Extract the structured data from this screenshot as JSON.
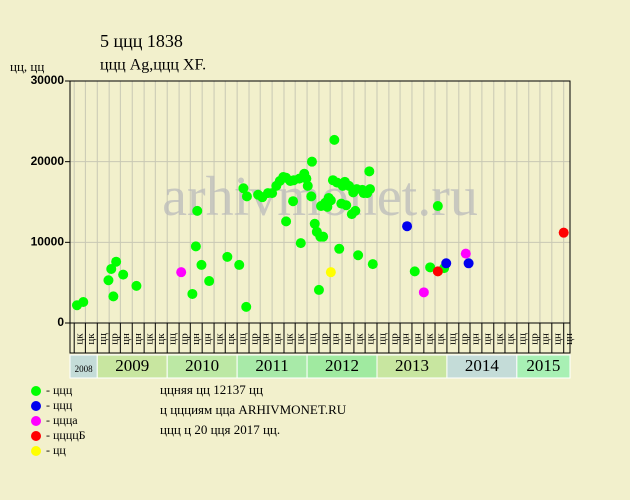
{
  "chart_data": {
    "type": "scatter",
    "title": "5 ццц 1838",
    "subtitle": "ццц Ag,ццц XF.",
    "ylabel": "цц, цц",
    "watermark": "arhivmonet.ru",
    "xlim": [
      2008.61,
      2015.76
    ],
    "ylim": [
      0,
      30000
    ],
    "yticks": [
      0,
      10000,
      20000,
      30000
    ],
    "grid": true,
    "xticks": [
      {
        "value": 2008.67,
        "label": "цк"
      },
      {
        "value": 2008.83,
        "label": "цк"
      },
      {
        "value": 2009,
        "label": "цц"
      },
      {
        "value": 2009.17,
        "label": "цр"
      },
      {
        "value": 2009.33,
        "label": "цн"
      },
      {
        "value": 2009.5,
        "label": "цн"
      },
      {
        "value": 2009.67,
        "label": "цк"
      },
      {
        "value": 2009.83,
        "label": "цк"
      },
      {
        "value": 2010,
        "label": "цц"
      },
      {
        "value": 2010.17,
        "label": "цр"
      },
      {
        "value": 2010.33,
        "label": "цн"
      },
      {
        "value": 2010.5,
        "label": "цн"
      },
      {
        "value": 2010.67,
        "label": "цк"
      },
      {
        "value": 2010.83,
        "label": "цк"
      },
      {
        "value": 2011,
        "label": "цц"
      },
      {
        "value": 2011.17,
        "label": "цр"
      },
      {
        "value": 2011.33,
        "label": "цн"
      },
      {
        "value": 2011.5,
        "label": "цн"
      },
      {
        "value": 2011.67,
        "label": "цк"
      },
      {
        "value": 2011.83,
        "label": "цк"
      },
      {
        "value": 2012,
        "label": "цц"
      },
      {
        "value": 2012.17,
        "label": "цр"
      },
      {
        "value": 2012.33,
        "label": "цн"
      },
      {
        "value": 2012.5,
        "label": "цн"
      },
      {
        "value": 2012.67,
        "label": "цк"
      },
      {
        "value": 2012.83,
        "label": "цк"
      },
      {
        "value": 2013,
        "label": "цц"
      },
      {
        "value": 2013.17,
        "label": "цр"
      },
      {
        "value": 2013.33,
        "label": "цн"
      },
      {
        "value": 2013.5,
        "label": "цн"
      },
      {
        "value": 2013.67,
        "label": "цк"
      },
      {
        "value": 2013.83,
        "label": "цк"
      },
      {
        "value": 2014,
        "label": "цц"
      },
      {
        "value": 2014.17,
        "label": "цр"
      },
      {
        "value": 2014.33,
        "label": "цн"
      },
      {
        "value": 2014.5,
        "label": "цн"
      },
      {
        "value": 2014.67,
        "label": "цк"
      },
      {
        "value": 2014.83,
        "label": "цк"
      },
      {
        "value": 2015,
        "label": "цц"
      },
      {
        "value": 2015.17,
        "label": "цр"
      },
      {
        "value": 2015.33,
        "label": "цн"
      },
      {
        "value": 2015.5,
        "label": "цн"
      },
      {
        "value": 2015.67,
        "label": "цн"
      }
    ],
    "year_bands": [
      {
        "label": "2008",
        "from": 2008.61,
        "to": 2009,
        "color": "#c4dcd8"
      },
      {
        "label": "2009",
        "from": 2009,
        "to": 2010,
        "color": "#c8e6a0"
      },
      {
        "label": "2010",
        "from": 2010,
        "to": 2011,
        "color": "#bce8a4"
      },
      {
        "label": "2011",
        "from": 2011,
        "to": 2012,
        "color": "#a8eaa8"
      },
      {
        "label": "2012",
        "from": 2012,
        "to": 2013,
        "color": "#a0eaa0"
      },
      {
        "label": "2013",
        "from": 2013,
        "to": 2014,
        "color": "#c8e6a0"
      },
      {
        "label": "2014",
        "from": 2014,
        "to": 2015,
        "color": "#c4dcd8"
      },
      {
        "label": "2015",
        "from": 2015,
        "to": 2015.76,
        "color": "#a8f0b4"
      }
    ],
    "series": [
      {
        "name": "- ццц",
        "color": "#00ff00",
        "x": [
          2008.71,
          2008.8,
          2009.16,
          2009.2,
          2009.23,
          2009.27,
          2009.37,
          2009.56,
          2010.36,
          2010.41,
          2010.43,
          2010.49,
          2010.6,
          2010.86,
          2011.03,
          2011.09,
          2011.13,
          2011.14,
          2011.3,
          2011.36,
          2011.44,
          2011.5,
          2011.56,
          2011.61,
          2011.66,
          2011.7,
          2011.7,
          2011.76,
          2011.8,
          2011.81,
          2011.89,
          2011.91,
          2011.96,
          2011.99,
          2012.01,
          2012.06,
          2012.07,
          2012.11,
          2012.14,
          2012.17,
          2012.19,
          2012.2,
          2012.23,
          2012.26,
          2012.29,
          2012.31,
          2012.34,
          2012.37,
          2012.39,
          2012.43,
          2012.46,
          2012.49,
          2012.51,
          2012.54,
          2012.56,
          2012.6,
          2012.64,
          2012.66,
          2012.69,
          2012.71,
          2012.73,
          2012.79,
          2012.81,
          2012.86,
          2012.89,
          2012.9,
          2012.94,
          2013.54,
          2013.76,
          2013.87,
          2013.96
        ],
        "values": [
          2200,
          2600,
          5300,
          6700,
          3300,
          7600,
          6000,
          4600,
          3600,
          9500,
          13900,
          7200,
          5200,
          8200,
          7200,
          16700,
          2000,
          15700,
          15900,
          15600,
          16100,
          16100,
          17000,
          17600,
          18100,
          12600,
          18000,
          17600,
          15100,
          17700,
          17900,
          9900,
          18500,
          17900,
          17000,
          15700,
          20000,
          12300,
          11300,
          4100,
          10700,
          14500,
          10700,
          14900,
          14400,
          15500,
          15200,
          17700,
          22700,
          17400,
          9200,
          14800,
          17000,
          17500,
          14600,
          17000,
          13500,
          16200,
          13900,
          16600,
          8400,
          16500,
          16100,
          16100,
          18800,
          16600,
          7300,
          6400,
          6900,
          14500,
          6800
        ]
      },
      {
        "name": "- ццц",
        "color": "#0000ee",
        "x": [
          2013.43,
          2013.99,
          2014.31
        ],
        "values": [
          12000,
          7400,
          7400
        ]
      },
      {
        "name": "- ццца",
        "color": "#ff00ff",
        "x": [
          2010.2,
          2013.67,
          2014.27
        ],
        "values": [
          6300,
          3800,
          8600
        ]
      },
      {
        "name": "- ццццБ",
        "color": "#ff0000",
        "x": [
          2013.87,
          2015.67
        ],
        "values": [
          6400,
          11200
        ]
      },
      {
        "name": "- цц",
        "color": "#ffff00",
        "x": [
          2012.34
        ],
        "values": [
          6300
        ]
      }
    ],
    "notes": [
      "ццняя цц 12137 цц",
      "ц ццциям цца ARHIVMONET.RU",
      "ццц ц 20 цця 2017 цц."
    ]
  }
}
